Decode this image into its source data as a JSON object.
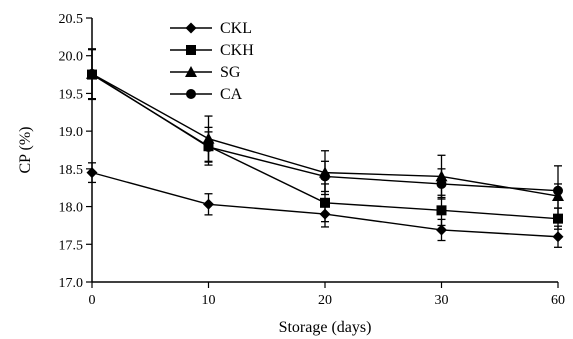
{
  "chart_data": {
    "type": "line",
    "title": "",
    "xlabel": "Storage (days)",
    "ylabel": "CP (%)",
    "x": [
      "0",
      "10",
      "20",
      "30",
      "60"
    ],
    "xticks": [
      "0",
      "10",
      "20",
      "30",
      "60"
    ],
    "yticks": [
      "17.0",
      "17.5",
      "18.0",
      "18.5",
      "19.0",
      "19.5",
      "20.0",
      "20.5"
    ],
    "ylim": [
      17.0,
      20.5
    ],
    "grid": false,
    "legend_position": "top-left",
    "series": [
      {
        "name": "CKL",
        "marker": "diamond",
        "values": [
          18.45,
          18.03,
          17.9,
          17.69,
          17.6
        ],
        "errors": [
          0.13,
          0.14,
          0.17,
          0.14,
          0.14
        ]
      },
      {
        "name": "CKH",
        "marker": "square",
        "values": [
          19.75,
          18.8,
          18.05,
          17.95,
          17.84
        ],
        "errors": [
          0.33,
          0.25,
          0.25,
          0.2,
          0.14
        ]
      },
      {
        "name": "SG",
        "marker": "triangle",
        "values": [
          19.76,
          18.9,
          18.45,
          18.4,
          18.14
        ],
        "errors": [
          0.33,
          0.3,
          0.29,
          0.28,
          0.16
        ]
      },
      {
        "name": "CA",
        "marker": "circle",
        "values": [
          19.76,
          18.79,
          18.4,
          18.3,
          18.21
        ],
        "errors": [
          0.33,
          0.2,
          0.2,
          0.2,
          0.33
        ]
      }
    ]
  }
}
